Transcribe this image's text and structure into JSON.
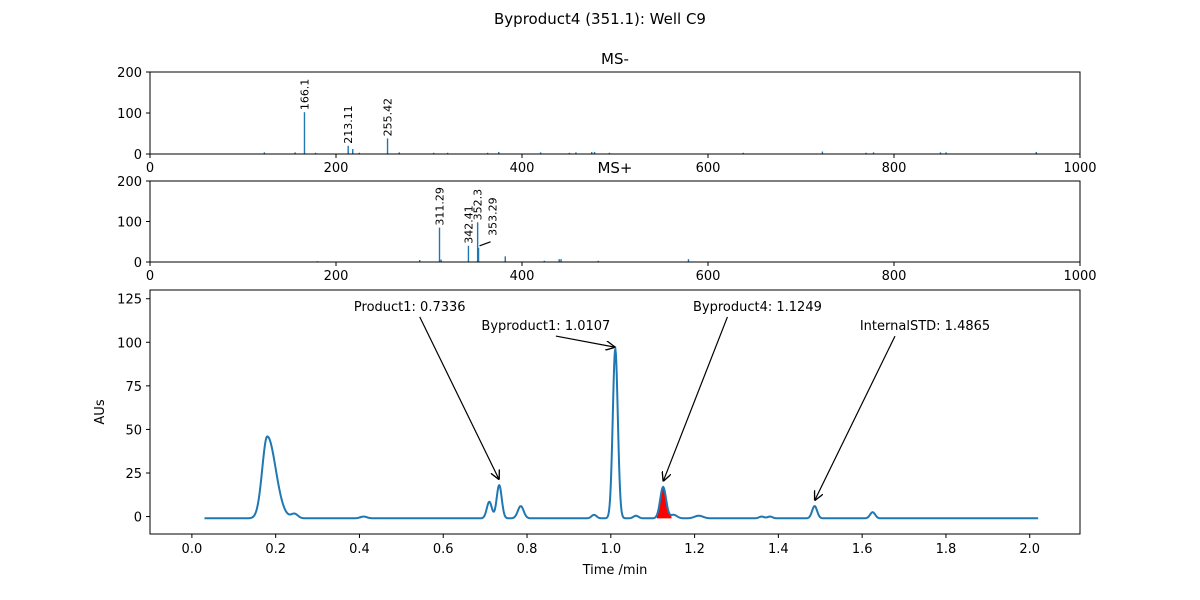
{
  "figure_title": "Byproduct4 (351.1): Well C9",
  "colors": {
    "spectrum": "#1f77b4",
    "trace": "#1f77b4",
    "highlight": "#ff0000"
  },
  "chart_data": [
    {
      "type": "bar",
      "title": "MS-",
      "xlim": [
        0,
        1000
      ],
      "ylim": [
        0,
        200
      ],
      "xticks": [
        0,
        200,
        400,
        600,
        800,
        1000
      ],
      "yticks": [
        0,
        100,
        200
      ],
      "peaks": [
        {
          "mz": 123,
          "intensity": 4
        },
        {
          "mz": 156,
          "intensity": 4
        },
        {
          "mz": 166.1,
          "intensity": 102
        },
        {
          "mz": 178,
          "intensity": 3
        },
        {
          "mz": 213.11,
          "intensity": 20
        },
        {
          "mz": 218,
          "intensity": 12
        },
        {
          "mz": 225,
          "intensity": 3
        },
        {
          "mz": 255.42,
          "intensity": 38
        },
        {
          "mz": 268,
          "intensity": 4
        },
        {
          "mz": 305,
          "intensity": 3
        },
        {
          "mz": 320,
          "intensity": 3
        },
        {
          "mz": 363,
          "intensity": 3
        },
        {
          "mz": 375,
          "intensity": 5
        },
        {
          "mz": 420,
          "intensity": 4
        },
        {
          "mz": 451,
          "intensity": 3
        },
        {
          "mz": 458,
          "intensity": 4
        },
        {
          "mz": 475,
          "intensity": 5
        },
        {
          "mz": 478,
          "intensity": 5
        },
        {
          "mz": 494,
          "intensity": 3
        },
        {
          "mz": 638,
          "intensity": 3
        },
        {
          "mz": 723,
          "intensity": 6
        },
        {
          "mz": 770,
          "intensity": 3
        },
        {
          "mz": 778,
          "intensity": 4
        },
        {
          "mz": 850,
          "intensity": 4
        },
        {
          "mz": 856,
          "intensity": 4
        },
        {
          "mz": 953,
          "intensity": 5
        }
      ],
      "labels": [
        {
          "text": "166.1",
          "mz": 166.1,
          "intensity": 102
        },
        {
          "text": "213.11",
          "mz": 213.11,
          "intensity": 20
        },
        {
          "text": "255.42",
          "mz": 255.42,
          "intensity": 38
        }
      ]
    },
    {
      "type": "bar",
      "title": "MS+",
      "xlim": [
        0,
        1000
      ],
      "ylim": [
        0,
        200
      ],
      "xticks": [
        0,
        200,
        400,
        600,
        800,
        1000
      ],
      "yticks": [
        0,
        100,
        200
      ],
      "peaks": [
        {
          "mz": 180,
          "intensity": 2
        },
        {
          "mz": 290,
          "intensity": 5
        },
        {
          "mz": 311.29,
          "intensity": 85
        },
        {
          "mz": 313,
          "intensity": 6
        },
        {
          "mz": 342.41,
          "intensity": 40
        },
        {
          "mz": 352.3,
          "intensity": 98
        },
        {
          "mz": 353.29,
          "intensity": 35
        },
        {
          "mz": 382,
          "intensity": 14
        },
        {
          "mz": 424,
          "intensity": 3
        },
        {
          "mz": 440,
          "intensity": 7
        },
        {
          "mz": 442,
          "intensity": 7
        },
        {
          "mz": 482,
          "intensity": 3
        },
        {
          "mz": 579,
          "intensity": 7
        }
      ],
      "labels": [
        {
          "text": "311.29",
          "mz": 311.29,
          "intensity": 85
        },
        {
          "text": "342.41",
          "mz": 342.41,
          "intensity": 40
        },
        {
          "text": "352.3",
          "mz": 352.3,
          "intensity": 98
        },
        {
          "text": "353.29",
          "mz": 353.29,
          "intensity": 35,
          "arrow": true
        }
      ]
    },
    {
      "type": "line",
      "title": "",
      "xlabel": "Time /min",
      "ylabel": "AUs",
      "xlim": [
        -0.1,
        2.12
      ],
      "ylim": [
        -10,
        130
      ],
      "xticks": [
        0.0,
        0.2,
        0.4,
        0.6,
        0.8,
        1.0,
        1.2,
        1.4,
        1.6,
        1.8,
        2.0
      ],
      "xtick_labels": [
        "0.0",
        "0.2",
        "0.4",
        "0.6",
        "0.8",
        "1.0",
        "1.2",
        "1.4",
        "1.6",
        "1.8",
        "2.0"
      ],
      "yticks": [
        0,
        25,
        50,
        75,
        100,
        125
      ],
      "x_range": [
        0.03,
        2.02
      ],
      "baseline": -1,
      "peaks": [
        {
          "rt": 0.18,
          "height": 47,
          "width": 0.012,
          "tail": 0.04
        },
        {
          "rt": 0.245,
          "height": 2.5,
          "width": 0.008
        },
        {
          "rt": 0.41,
          "height": 1,
          "width": 0.008
        },
        {
          "rt": 0.71,
          "height": 9.5,
          "width": 0.006
        },
        {
          "rt": 0.7336,
          "height": 19,
          "width": 0.006
        },
        {
          "rt": 0.785,
          "height": 7,
          "width": 0.007
        },
        {
          "rt": 0.96,
          "height": 2,
          "width": 0.006
        },
        {
          "rt": 1.0107,
          "height": 97,
          "width": 0.006
        },
        {
          "rt": 1.06,
          "height": 1.5,
          "width": 0.006
        },
        {
          "rt": 1.1249,
          "height": 18,
          "width": 0.007
        },
        {
          "rt": 1.15,
          "height": 2,
          "width": 0.008
        },
        {
          "rt": 1.21,
          "height": 1.5,
          "width": 0.01
        },
        {
          "rt": 1.36,
          "height": 1,
          "width": 0.006
        },
        {
          "rt": 1.38,
          "height": 1,
          "width": 0.006
        },
        {
          "rt": 1.4865,
          "height": 7,
          "width": 0.006
        },
        {
          "rt": 1.625,
          "height": 3.5,
          "width": 0.006
        }
      ],
      "highlight_range": [
        1.11,
        1.145
      ],
      "annotations": [
        {
          "text": "Product1: 0.7336",
          "rt": 0.7336,
          "value": 20,
          "label_rt": 0.52,
          "label_value": 118
        },
        {
          "text": "Byproduct1: 1.0107",
          "rt": 1.0107,
          "value": 96,
          "label_rt": 0.845,
          "label_value": 107
        },
        {
          "text": "Byproduct4: 1.1249",
          "rt": 1.1249,
          "value": 19,
          "label_rt": 1.35,
          "label_value": 118
        },
        {
          "text": "InternalSTD: 1.4865",
          "rt": 1.4865,
          "value": 8,
          "label_rt": 1.75,
          "label_value": 107
        }
      ]
    }
  ]
}
